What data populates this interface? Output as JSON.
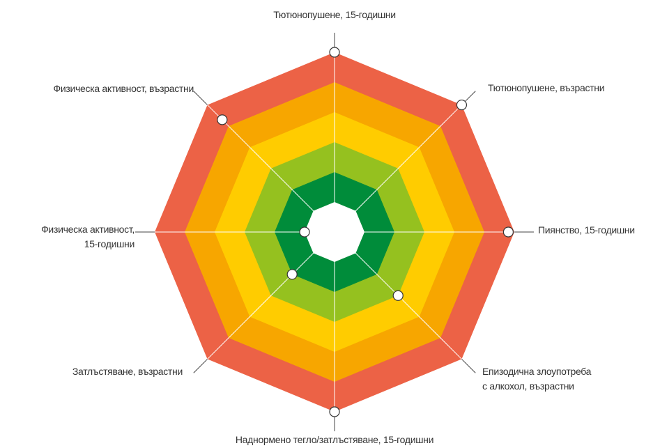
{
  "chart_data": {
    "type": "radar",
    "categories": [
      "Тютюнопушене, 15-годишни",
      "Тютюнопушене, възрастни",
      "Пиянство, 15-годишни",
      "Епизодична злоупотреба\nс алкохол, възрастни",
      "Наднормено тегло/затлъстяване, 15-годишни",
      "Затлъстяване, възрастни",
      "Физическа активност,\n15-годишни",
      "Физическа активност, възрастни"
    ],
    "values": [
      6,
      6,
      5.8,
      3,
      6,
      2,
      1,
      5.3
    ],
    "rlim": [
      0,
      6
    ],
    "rticks": [
      1,
      2,
      3,
      4,
      5,
      6
    ],
    "band_colors": [
      "#ffffff",
      "#008c3a",
      "#95c11f",
      "#ffcc00",
      "#f7a600",
      "#ec6246"
    ],
    "marker_color": "#ffffff"
  }
}
